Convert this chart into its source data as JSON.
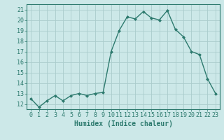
{
  "x": [
    0,
    1,
    2,
    3,
    4,
    5,
    6,
    7,
    8,
    9,
    10,
    11,
    12,
    13,
    14,
    15,
    16,
    17,
    18,
    19,
    20,
    21,
    22,
    23
  ],
  "y": [
    12.5,
    11.7,
    12.3,
    12.8,
    12.3,
    12.8,
    13.0,
    12.8,
    13.0,
    13.1,
    17.0,
    19.0,
    20.3,
    20.1,
    20.8,
    20.2,
    20.0,
    20.9,
    19.1,
    18.4,
    17.0,
    16.7,
    14.4,
    13.0
  ],
  "line_color": "#2d7a6e",
  "marker": "D",
  "marker_size": 2.0,
  "bg_color": "#cce8e8",
  "grid_color": "#aacccc",
  "xlabel": "Humidex (Indice chaleur)",
  "ylim": [
    11.5,
    21.5
  ],
  "xlim": [
    -0.5,
    23.5
  ],
  "yticks": [
    12,
    13,
    14,
    15,
    16,
    17,
    18,
    19,
    20,
    21
  ],
  "xticks": [
    0,
    1,
    2,
    3,
    4,
    5,
    6,
    7,
    8,
    9,
    10,
    11,
    12,
    13,
    14,
    15,
    16,
    17,
    18,
    19,
    20,
    21,
    22,
    23
  ],
  "tick_color": "#2d7a6e",
  "axis_color": "#2d7a6e",
  "tick_fontsize": 6,
  "xlabel_fontsize": 7,
  "linewidth": 1.0
}
